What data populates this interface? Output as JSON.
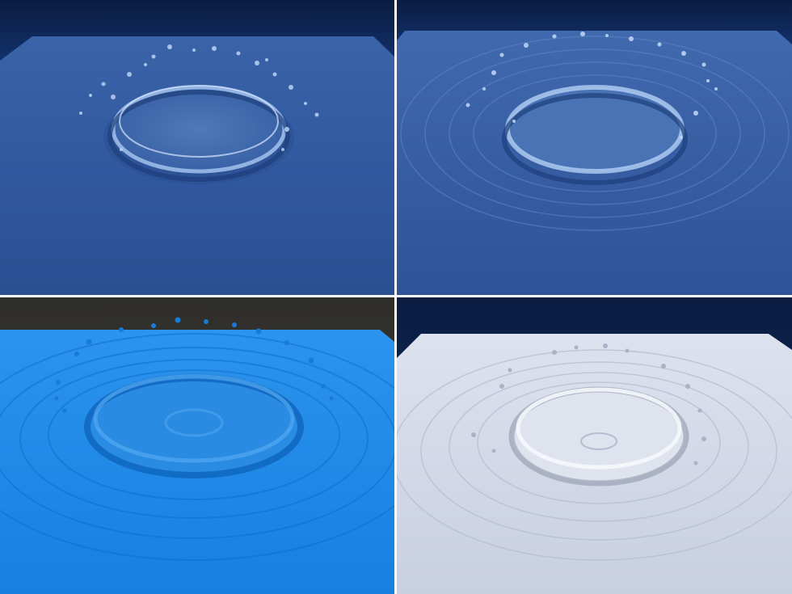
{
  "figure": {
    "panels": [
      {
        "id": "top-left",
        "style": "transparent-water",
        "background_top": "#0b1f44",
        "surface": "#2f5aa0"
      },
      {
        "id": "top-right",
        "style": "transparent-water-ripples",
        "background_top": "#0b1f44",
        "surface": "#3a62a8"
      },
      {
        "id": "bottom-left",
        "style": "particles",
        "background_top": "#3a3a36",
        "surface": "#1e86e6"
      },
      {
        "id": "bottom-right",
        "style": "white-surface",
        "background_top": "#0b1f44",
        "surface": "#cfd5e6"
      }
    ]
  }
}
